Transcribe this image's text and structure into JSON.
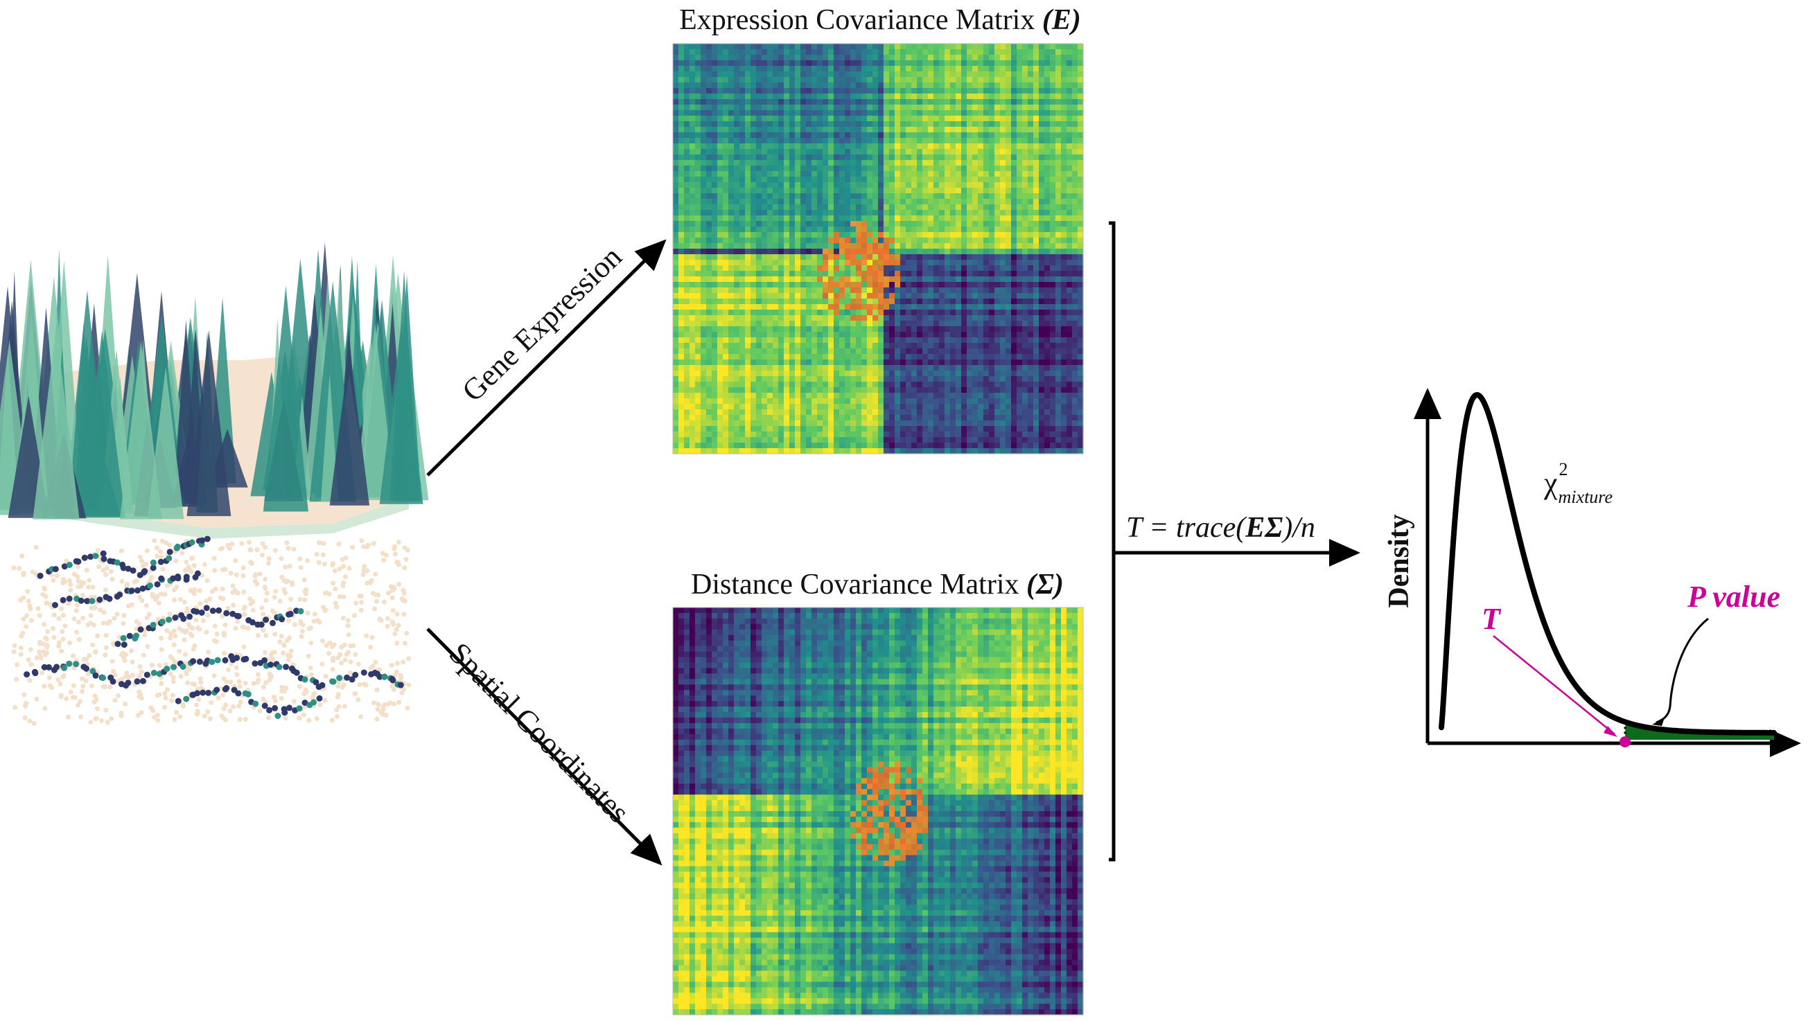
{
  "matrices": {
    "expression": {
      "title": "Expression Covariance Matrix ",
      "symbol": "(E)"
    },
    "distance": {
      "title": "Distance Covariance Matrix ",
      "symbol": "(Σ)"
    }
  },
  "arrows": {
    "gene_expression": "Gene Expression",
    "spatial_coordinates": "Spatial Coordinates"
  },
  "statistic": {
    "formula_start": "T = trace(",
    "formula_bold": "EΣ",
    "formula_end": ")/n"
  },
  "density_plot": {
    "ylabel": "Density",
    "chi_symbol": "χ",
    "chi_superscript": "2",
    "chi_subscript": "mixture",
    "t_label": "T",
    "p_label": "P value",
    "colors": {
      "highlight": "#cc0099",
      "tail_fill": "#0d6b1d",
      "curve": "#000000"
    }
  },
  "colors": {
    "viridis_dark": "#440154",
    "viridis_mid": "#21918c",
    "viridis_light": "#fde725",
    "warm": "#e07b2a",
    "tissue": "#f6e3cf",
    "peaks": "#2f8f85"
  },
  "icons": [
    "tissue-landscape-icon",
    "spot-map-icon"
  ]
}
